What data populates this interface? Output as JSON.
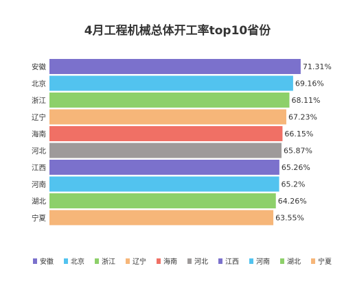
{
  "chart_data": {
    "type": "bar",
    "orientation": "horizontal",
    "title": "4月工程机械总体开工率top10省份",
    "categories": [
      "安徽",
      "北京",
      "浙江",
      "辽宁",
      "海南",
      "河北",
      "江西",
      "河南",
      "湖北",
      "宁夏"
    ],
    "values": [
      71.31,
      69.16,
      68.11,
      67.23,
      66.15,
      65.87,
      65.26,
      65.2,
      64.26,
      63.55
    ],
    "value_labels": [
      "71.31%",
      "69.16%",
      "68.11%",
      "67.23%",
      "66.15%",
      "65.87%",
      "65.26%",
      "65.2%",
      "64.26%",
      "63.55%"
    ],
    "colors": [
      "#7b71cc",
      "#52c3ef",
      "#8dd06a",
      "#f6b679",
      "#f07065",
      "#9e9a9a",
      "#7b71cc",
      "#52c3ef",
      "#8dd06a",
      "#f6b679"
    ],
    "xlim": [
      0,
      72.5
    ],
    "xlabel": "",
    "ylabel": "",
    "grid": false,
    "legend_position": "bottom"
  }
}
